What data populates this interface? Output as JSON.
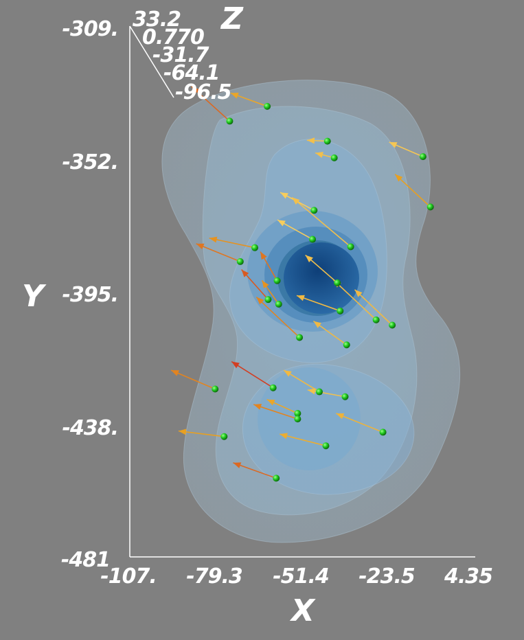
{
  "chart_data": {
    "type": "scatter",
    "subtype": "3d-vector-field-with-isosurfaces",
    "xlabel": "X",
    "ylabel": "Y",
    "zlabel": "Z",
    "x_ticks": [
      "-107.",
      "-79.3",
      "-51.4",
      "-23.5",
      "4.35"
    ],
    "y_ticks": [
      "-309.",
      "-352.",
      "-395.",
      "-438.",
      "-481"
    ],
    "z_ticks": [
      "33.2",
      "0.770",
      "-31.7",
      "-64.1",
      "-96.5"
    ],
    "xlim": [
      -107,
      4.35
    ],
    "ylim": [
      -481,
      -309
    ],
    "colors": {
      "background": "#808080",
      "isosurface": "#8fb8d8",
      "core": "#1f5a92",
      "point": "#22dd22",
      "arrow_low": "#ffe680",
      "arrow_high": "#cc2222"
    },
    "points": [
      {
        "x": -62.7,
        "y": -335.0,
        "dx": -11.8,
        "dy": 4.3,
        "m": 0.5
      },
      {
        "x": -74.8,
        "y": -339.8,
        "dx": -12.3,
        "dy": 11.2,
        "m": 0.75
      },
      {
        "x": -43.3,
        "y": -346.3,
        "dx": -6.6,
        "dy": 0.3,
        "m": 0.3
      },
      {
        "x": -41.1,
        "y": -351.7,
        "dx": -6.1,
        "dy": 1.6,
        "m": 0.3
      },
      {
        "x": -12.5,
        "y": -351.3,
        "dx": -10.9,
        "dy": 4.7,
        "m": 0.25
      },
      {
        "x": -10.1,
        "y": -367.6,
        "dx": -11.4,
        "dy": 10.6,
        "m": 0.55
      },
      {
        "x": -47.6,
        "y": -368.7,
        "dx": -10.9,
        "dy": 5.8,
        "m": 0.2
      },
      {
        "x": -48.1,
        "y": -378.1,
        "dx": -11.3,
        "dy": 6.3,
        "m": 0.2
      },
      {
        "x": -66.7,
        "y": -380.8,
        "dx": -14.7,
        "dy": 3.1,
        "m": 0.6
      },
      {
        "x": -71.4,
        "y": -385.3,
        "dx": -14.2,
        "dy": 5.8,
        "m": 0.7
      },
      {
        "x": -35.8,
        "y": -380.5,
        "dx": -18.9,
        "dy": 16.0,
        "m": 0.3
      },
      {
        "x": -40.1,
        "y": -392.2,
        "dx": -10.3,
        "dy": 9.0,
        "m": 0.3
      },
      {
        "x": -59.5,
        "y": -391.5,
        "dx": -5.4,
        "dy": 9.4,
        "m": 0.7
      },
      {
        "x": -62.4,
        "y": -397.6,
        "dx": -8.6,
        "dy": 9.7,
        "m": 0.8
      },
      {
        "x": -59.0,
        "y": -399.1,
        "dx": -5.4,
        "dy": 7.7,
        "m": 0.6
      },
      {
        "x": -39.2,
        "y": -401.3,
        "dx": -14.0,
        "dy": 5.0,
        "m": 0.35
      },
      {
        "x": -27.6,
        "y": -404.2,
        "dx": -13.7,
        "dy": 12.9,
        "m": 0.35
      },
      {
        "x": -22.4,
        "y": -405.9,
        "dx": -12.1,
        "dy": 11.5,
        "m": 0.35
      },
      {
        "x": -52.3,
        "y": -409.9,
        "dx": -13.9,
        "dy": 13.1,
        "m": 0.65
      },
      {
        "x": -37.1,
        "y": -412.3,
        "dx": -10.7,
        "dy": 7.7,
        "m": 0.35
      },
      {
        "x": -60.8,
        "y": -426.2,
        "dx": -13.4,
        "dy": 8.5,
        "m": 0.9
      },
      {
        "x": -79.5,
        "y": -426.6,
        "dx": -14.2,
        "dy": 6.1,
        "m": 0.65
      },
      {
        "x": -45.9,
        "y": -427.5,
        "dx": -11.5,
        "dy": 7.0,
        "m": 0.35
      },
      {
        "x": -37.6,
        "y": -429.1,
        "dx": -12.1,
        "dy": 2.2,
        "m": 0.3
      },
      {
        "x": -52.9,
        "y": -434.5,
        "dx": -9.9,
        "dy": 4.5,
        "m": 0.5
      },
      {
        "x": -52.9,
        "y": -436.3,
        "dx": -14.2,
        "dy": 4.7,
        "m": 0.65
      },
      {
        "x": -76.6,
        "y": -442.0,
        "dx": -14.7,
        "dy": 1.8,
        "m": 0.55
      },
      {
        "x": -25.4,
        "y": -440.6,
        "dx": -15.1,
        "dy": 6.1,
        "m": 0.4
      },
      {
        "x": -43.8,
        "y": -445.0,
        "dx": -14.9,
        "dy": 3.8,
        "m": 0.45
      },
      {
        "x": -59.8,
        "y": -455.5,
        "dx": -13.9,
        "dy": 5.0,
        "m": 0.75
      }
    ]
  }
}
